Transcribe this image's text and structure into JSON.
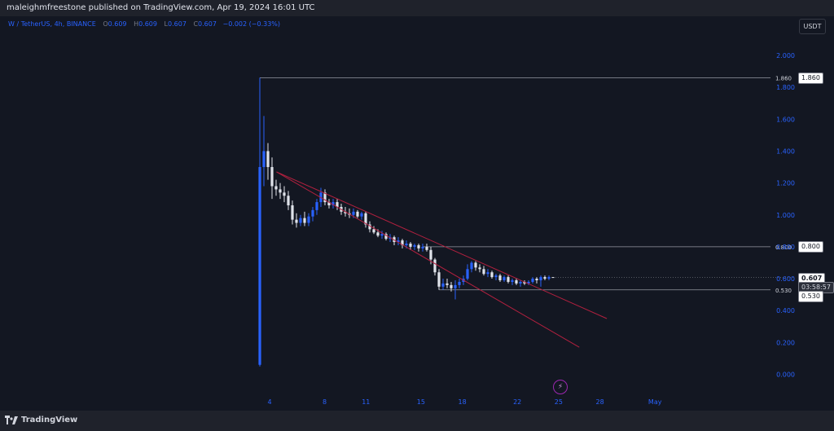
{
  "header": {
    "publisher_line": "maleighmfreestone published on TradingView.com, Apr 19, 2024 16:01 UTC"
  },
  "symbol": {
    "name": "W / TetherUS, 4h, BINANCE",
    "open_label": "O",
    "open": "0.609",
    "high_label": "H",
    "high": "0.609",
    "low_label": "L",
    "low": "0.607",
    "close_label": "C",
    "close": "0.607",
    "change": "−0.002 (−0.33%)"
  },
  "currency_button": "USDT",
  "price_tags": {
    "level_high": "1.860",
    "level_mid": "0.800",
    "level_low": "0.530",
    "last_price": "0.607",
    "countdown": "03:58:57"
  },
  "footer": {
    "brand": "TradingView"
  },
  "colors": {
    "bg": "#131722",
    "up": "#2962ff",
    "down": "#e0e3eb",
    "trend": "#b2203f",
    "grid_text": "#2962ff"
  },
  "chart_data": {
    "type": "candlestick",
    "title": "W / TetherUS, 4h, BINANCE",
    "y_ticks": [
      "0.000",
      "0.200",
      "0.400",
      "0.600",
      "0.800",
      "1.000",
      "1.200",
      "1.400",
      "1.600",
      "1.800",
      "2.000"
    ],
    "ylim": [
      -0.05,
      2.05
    ],
    "x_ticks": [
      "4",
      "8",
      "11",
      "15",
      "18",
      "22",
      "25",
      "28",
      "May"
    ],
    "horizontal_levels": [
      1.86,
      0.8,
      0.53
    ],
    "last_price": 0.607,
    "trendlines": [
      {
        "from": [
          2.5,
          1.27
        ],
        "to": [
          30.5,
          0.35
        ]
      },
      {
        "from": [
          2.5,
          1.27
        ],
        "to": [
          28.5,
          0.17
        ]
      }
    ],
    "candles": [
      {
        "o": 0.06,
        "h": 1.86,
        "l": 0.05,
        "c": 1.3
      },
      {
        "o": 1.3,
        "h": 1.62,
        "l": 1.18,
        "c": 1.4
      },
      {
        "o": 1.4,
        "h": 1.45,
        "l": 1.22,
        "c": 1.3
      },
      {
        "o": 1.3,
        "h": 1.36,
        "l": 1.1,
        "c": 1.18
      },
      {
        "o": 1.18,
        "h": 1.22,
        "l": 1.12,
        "c": 1.16
      },
      {
        "o": 1.16,
        "h": 1.2,
        "l": 1.1,
        "c": 1.14
      },
      {
        "o": 1.14,
        "h": 1.18,
        "l": 1.08,
        "c": 1.12
      },
      {
        "o": 1.12,
        "h": 1.15,
        "l": 1.03,
        "c": 1.06
      },
      {
        "o": 1.06,
        "h": 1.09,
        "l": 0.94,
        "c": 0.97
      },
      {
        "o": 0.97,
        "h": 1.01,
        "l": 0.92,
        "c": 0.95
      },
      {
        "o": 0.95,
        "h": 1.0,
        "l": 0.93,
        "c": 0.98
      },
      {
        "o": 0.98,
        "h": 1.02,
        "l": 0.93,
        "c": 0.95
      },
      {
        "o": 0.95,
        "h": 1.01,
        "l": 0.93,
        "c": 0.99
      },
      {
        "o": 0.99,
        "h": 1.05,
        "l": 0.96,
        "c": 1.03
      },
      {
        "o": 1.03,
        "h": 1.1,
        "l": 1.0,
        "c": 1.08
      },
      {
        "o": 1.08,
        "h": 1.17,
        "l": 1.05,
        "c": 1.14
      },
      {
        "o": 1.14,
        "h": 1.16,
        "l": 1.06,
        "c": 1.08
      },
      {
        "o": 1.08,
        "h": 1.1,
        "l": 1.04,
        "c": 1.06
      },
      {
        "o": 1.06,
        "h": 1.1,
        "l": 1.04,
        "c": 1.08
      },
      {
        "o": 1.08,
        "h": 1.1,
        "l": 1.03,
        "c": 1.05
      },
      {
        "o": 1.05,
        "h": 1.07,
        "l": 1.0,
        "c": 1.02
      },
      {
        "o": 1.02,
        "h": 1.05,
        "l": 0.99,
        "c": 1.01
      },
      {
        "o": 1.01,
        "h": 1.04,
        "l": 0.98,
        "c": 1.0
      },
      {
        "o": 1.0,
        "h": 1.04,
        "l": 0.98,
        "c": 1.02
      },
      {
        "o": 1.02,
        "h": 1.03,
        "l": 0.98,
        "c": 0.99
      },
      {
        "o": 0.99,
        "h": 1.02,
        "l": 0.97,
        "c": 1.01
      },
      {
        "o": 1.01,
        "h": 1.02,
        "l": 0.92,
        "c": 0.94
      },
      {
        "o": 0.94,
        "h": 0.96,
        "l": 0.89,
        "c": 0.91
      },
      {
        "o": 0.91,
        "h": 0.93,
        "l": 0.88,
        "c": 0.89
      },
      {
        "o": 0.89,
        "h": 0.91,
        "l": 0.86,
        "c": 0.87
      },
      {
        "o": 0.87,
        "h": 0.9,
        "l": 0.85,
        "c": 0.88
      },
      {
        "o": 0.88,
        "h": 0.89,
        "l": 0.84,
        "c": 0.85
      },
      {
        "o": 0.85,
        "h": 0.88,
        "l": 0.83,
        "c": 0.86
      },
      {
        "o": 0.86,
        "h": 0.87,
        "l": 0.81,
        "c": 0.83
      },
      {
        "o": 0.83,
        "h": 0.86,
        "l": 0.81,
        "c": 0.84
      },
      {
        "o": 0.84,
        "h": 0.85,
        "l": 0.79,
        "c": 0.81
      },
      {
        "o": 0.81,
        "h": 0.84,
        "l": 0.79,
        "c": 0.82
      },
      {
        "o": 0.82,
        "h": 0.83,
        "l": 0.78,
        "c": 0.8
      },
      {
        "o": 0.8,
        "h": 0.82,
        "l": 0.78,
        "c": 0.81
      },
      {
        "o": 0.81,
        "h": 0.82,
        "l": 0.77,
        "c": 0.79
      },
      {
        "o": 0.79,
        "h": 0.82,
        "l": 0.77,
        "c": 0.8
      },
      {
        "o": 0.8,
        "h": 0.82,
        "l": 0.77,
        "c": 0.78
      },
      {
        "o": 0.78,
        "h": 0.8,
        "l": 0.69,
        "c": 0.72
      },
      {
        "o": 0.72,
        "h": 0.73,
        "l": 0.62,
        "c": 0.64
      },
      {
        "o": 0.64,
        "h": 0.66,
        "l": 0.53,
        "c": 0.55
      },
      {
        "o": 0.55,
        "h": 0.6,
        "l": 0.53,
        "c": 0.57
      },
      {
        "o": 0.57,
        "h": 0.6,
        "l": 0.54,
        "c": 0.56
      },
      {
        "o": 0.56,
        "h": 0.58,
        "l": 0.52,
        "c": 0.54
      },
      {
        "o": 0.54,
        "h": 0.59,
        "l": 0.47,
        "c": 0.56
      },
      {
        "o": 0.56,
        "h": 0.6,
        "l": 0.54,
        "c": 0.58
      },
      {
        "o": 0.58,
        "h": 0.62,
        "l": 0.56,
        "c": 0.6
      },
      {
        "o": 0.6,
        "h": 0.69,
        "l": 0.59,
        "c": 0.66
      },
      {
        "o": 0.66,
        "h": 0.71,
        "l": 0.64,
        "c": 0.7
      },
      {
        "o": 0.7,
        "h": 0.71,
        "l": 0.65,
        "c": 0.67
      },
      {
        "o": 0.67,
        "h": 0.69,
        "l": 0.64,
        "c": 0.66
      },
      {
        "o": 0.66,
        "h": 0.68,
        "l": 0.62,
        "c": 0.63
      },
      {
        "o": 0.63,
        "h": 0.66,
        "l": 0.61,
        "c": 0.64
      },
      {
        "o": 0.64,
        "h": 0.65,
        "l": 0.6,
        "c": 0.61
      },
      {
        "o": 0.61,
        "h": 0.63,
        "l": 0.59,
        "c": 0.62
      },
      {
        "o": 0.62,
        "h": 0.63,
        "l": 0.58,
        "c": 0.59
      },
      {
        "o": 0.59,
        "h": 0.62,
        "l": 0.58,
        "c": 0.61
      },
      {
        "o": 0.61,
        "h": 0.62,
        "l": 0.57,
        "c": 0.58
      },
      {
        "o": 0.58,
        "h": 0.6,
        "l": 0.56,
        "c": 0.59
      },
      {
        "o": 0.59,
        "h": 0.6,
        "l": 0.56,
        "c": 0.57
      },
      {
        "o": 0.57,
        "h": 0.59,
        "l": 0.55,
        "c": 0.58
      },
      {
        "o": 0.58,
        "h": 0.59,
        "l": 0.56,
        "c": 0.57
      },
      {
        "o": 0.57,
        "h": 0.59,
        "l": 0.56,
        "c": 0.58
      },
      {
        "o": 0.58,
        "h": 0.61,
        "l": 0.57,
        "c": 0.6
      },
      {
        "o": 0.6,
        "h": 0.61,
        "l": 0.57,
        "c": 0.59
      },
      {
        "o": 0.59,
        "h": 0.62,
        "l": 0.55,
        "c": 0.61
      },
      {
        "o": 0.61,
        "h": 0.62,
        "l": 0.59,
        "c": 0.6
      },
      {
        "o": 0.6,
        "h": 0.62,
        "l": 0.59,
        "c": 0.61
      },
      {
        "o": 0.61,
        "h": 0.61,
        "l": 0.607,
        "c": 0.607
      }
    ]
  }
}
